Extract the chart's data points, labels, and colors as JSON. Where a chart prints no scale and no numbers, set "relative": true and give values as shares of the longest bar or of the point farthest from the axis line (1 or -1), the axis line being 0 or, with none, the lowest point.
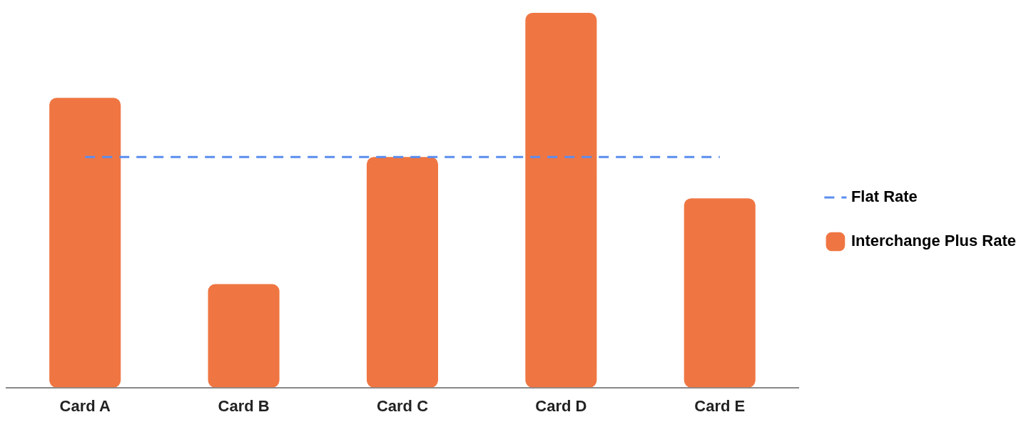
{
  "chart_data": {
    "type": "bar",
    "relative": true,
    "categories": [
      "Card A",
      "Card B",
      "Card C",
      "Card D",
      "Card E"
    ],
    "series": [
      {
        "name": "Flat Rate",
        "type": "line",
        "color": "#5b8def",
        "line_style": "dashed",
        "marker": "none",
        "values": [
          0.615,
          0.615,
          0.615,
          0.615,
          0.615
        ]
      },
      {
        "name": "Interchange Plus Rate",
        "color": "#ef7642",
        "values": [
          0.773,
          0.276,
          0.615,
          1,
          0.505
        ]
      }
    ],
    "grid": false,
    "legend": "right"
  }
}
